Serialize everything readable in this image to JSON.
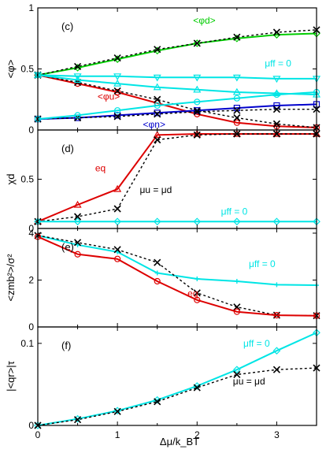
{
  "figure": {
    "xlabel": "Δμ/k_BT",
    "xticks": [
      0,
      1,
      2,
      3
    ],
    "xlim": [
      0,
      3.5
    ]
  },
  "chart_data": [
    {
      "type": "line",
      "panel_label": "(c)",
      "ylabel": "<φ>",
      "ylim": [
        0,
        1
      ],
      "yticks": [
        0,
        0.5,
        1
      ],
      "x": [
        0,
        0.5,
        1,
        1.5,
        2,
        2.5,
        3,
        3.5
      ],
      "grid": false,
      "series": [
        {
          "name": "<φd>",
          "color": "#00cc00",
          "marker": "diamond",
          "style": "solid",
          "values": [
            0.45,
            0.51,
            0.58,
            0.65,
            0.71,
            0.75,
            0.78,
            0.79
          ]
        },
        {
          "name": "",
          "color": "#000000",
          "marker": "x",
          "style": "dotted",
          "values": [
            0.45,
            0.52,
            0.59,
            0.66,
            0.71,
            0.76,
            0.8,
            0.82
          ]
        },
        {
          "name": "<φu>",
          "color": "#dd0000",
          "marker": "circle",
          "style": "solid",
          "values": [
            0.45,
            0.38,
            0.31,
            0.22,
            0.13,
            0.06,
            0.03,
            0.02
          ]
        },
        {
          "name": "",
          "color": "#000000",
          "marker": "x",
          "style": "dotted",
          "values": [
            0.45,
            0.39,
            0.32,
            0.25,
            0.16,
            0.1,
            0.05,
            0.02
          ]
        },
        {
          "name": "<φn>",
          "color": "#0000cc",
          "marker": "square",
          "style": "solid",
          "values": [
            0.09,
            0.1,
            0.12,
            0.14,
            0.16,
            0.18,
            0.2,
            0.21
          ]
        },
        {
          "name": "",
          "color": "#000000",
          "marker": "x",
          "style": "dotted",
          "values": [
            0.09,
            0.1,
            0.11,
            0.13,
            0.15,
            0.16,
            0.17,
            0.17
          ]
        },
        {
          "name": "",
          "color": "#00e5e5",
          "marker": "triangle-down",
          "style": "solid",
          "values": [
            0.45,
            0.44,
            0.44,
            0.43,
            0.43,
            0.43,
            0.42,
            0.42
          ]
        },
        {
          "name": "",
          "color": "#00e5e5",
          "marker": "triangle-up",
          "style": "solid",
          "values": [
            0.45,
            0.41,
            0.38,
            0.35,
            0.33,
            0.31,
            0.3,
            0.29
          ]
        },
        {
          "name": "",
          "color": "#00e5e5",
          "marker": "circle",
          "style": "solid",
          "values": [
            0.09,
            0.12,
            0.16,
            0.2,
            0.23,
            0.26,
            0.29,
            0.31
          ]
        }
      ],
      "annotations": [
        {
          "text": "<φd>",
          "color": "#00cc00",
          "x": 1.95,
          "y": 0.87
        },
        {
          "text": "μff = 0",
          "color": "#00e5e5",
          "x": 2.85,
          "y": 0.52
        },
        {
          "text": "<φu>",
          "color": "#dd0000",
          "x": 0.75,
          "y": 0.25
        },
        {
          "text": "<φn>",
          "color": "#0000cc",
          "x": 1.32,
          "y": 0.02
        }
      ]
    },
    {
      "type": "line",
      "panel_label": "(d)",
      "ylabel": "χd",
      "ylim": [
        0,
        1
      ],
      "yticks": [
        0,
        0.5
      ],
      "x": [
        0,
        0.5,
        1,
        1.5,
        2,
        2.5,
        3,
        3.5
      ],
      "grid": false,
      "series": [
        {
          "name": "eq",
          "color": "#dd0000",
          "marker": "triangle-up",
          "style": "solid",
          "values": [
            0.07,
            0.24,
            0.4,
            0.95,
            0.96,
            0.96,
            0.96,
            0.96
          ]
        },
        {
          "name": "μu = μd",
          "color": "#000000",
          "marker": "x",
          "style": "dotted",
          "values": [
            0.07,
            0.12,
            0.2,
            0.9,
            0.95,
            0.96,
            0.96,
            0.96
          ]
        },
        {
          "name": "μff = 0",
          "color": "#00e5e5",
          "marker": "diamond",
          "style": "solid",
          "values": [
            0.07,
            0.07,
            0.07,
            0.07,
            0.07,
            0.07,
            0.07,
            0.07
          ]
        }
      ],
      "annotations": [
        {
          "text": "eq",
          "color": "#dd0000",
          "x": 0.72,
          "y": 0.58
        },
        {
          "text": "μu = μd",
          "color": "#000000",
          "x": 1.28,
          "y": 0.36
        },
        {
          "text": "μff = 0",
          "color": "#00e5e5",
          "x": 2.3,
          "y": 0.14
        }
      ]
    },
    {
      "type": "line",
      "panel_label": "(e)",
      "ylabel": "<zmb²>/σ²",
      "ylim": [
        0,
        4.2
      ],
      "yticks": [
        0,
        2,
        4
      ],
      "x": [
        0,
        0.5,
        1,
        1.5,
        2,
        2.5,
        3,
        3.5
      ],
      "grid": false,
      "series": [
        {
          "name": "μff = 0",
          "color": "#00e5e5",
          "marker": "dash",
          "style": "solid",
          "values": [
            3.9,
            3.5,
            3.2,
            2.3,
            2.05,
            1.95,
            1.8,
            1.78
          ]
        },
        {
          "name": "",
          "color": "#000000",
          "marker": "x",
          "style": "dotted",
          "values": [
            3.9,
            3.6,
            3.3,
            2.75,
            1.45,
            0.85,
            0.5,
            0.48
          ]
        },
        {
          "name": "eq",
          "color": "#dd0000",
          "marker": "circle",
          "style": "solid",
          "values": [
            3.85,
            3.1,
            2.9,
            1.95,
            1.15,
            0.65,
            0.5,
            0.48
          ]
        }
      ],
      "annotations": [
        {
          "text": "μff = 0",
          "color": "#00e5e5",
          "x": 2.65,
          "y": 2.55
        },
        {
          "text": "eq",
          "color": "#dd0000",
          "x": 1.88,
          "y": 1.3
        }
      ]
    },
    {
      "type": "line",
      "panel_label": "(f)",
      "ylabel": "|<qr>|τ",
      "ylim": [
        0,
        0.12
      ],
      "yticks": [
        0,
        0.1
      ],
      "x": [
        0,
        0.5,
        1,
        1.5,
        2,
        2.5,
        3,
        3.5
      ],
      "grid": false,
      "series": [
        {
          "name": "μff = 0",
          "color": "#00e5e5",
          "marker": "diamond",
          "style": "solid",
          "values": [
            0,
            0.008,
            0.018,
            0.031,
            0.048,
            0.068,
            0.091,
            0.113
          ]
        },
        {
          "name": "μu = μd",
          "color": "#000000",
          "marker": "x",
          "style": "dotted",
          "values": [
            0,
            0.007,
            0.017,
            0.029,
            0.046,
            0.062,
            0.068,
            0.07
          ]
        }
      ],
      "annotations": [
        {
          "text": "μff = 0",
          "color": "#00e5e5",
          "x": 2.58,
          "y": 0.096
        },
        {
          "text": "μu = μd",
          "color": "#000000",
          "x": 2.45,
          "y": 0.05
        }
      ]
    }
  ]
}
